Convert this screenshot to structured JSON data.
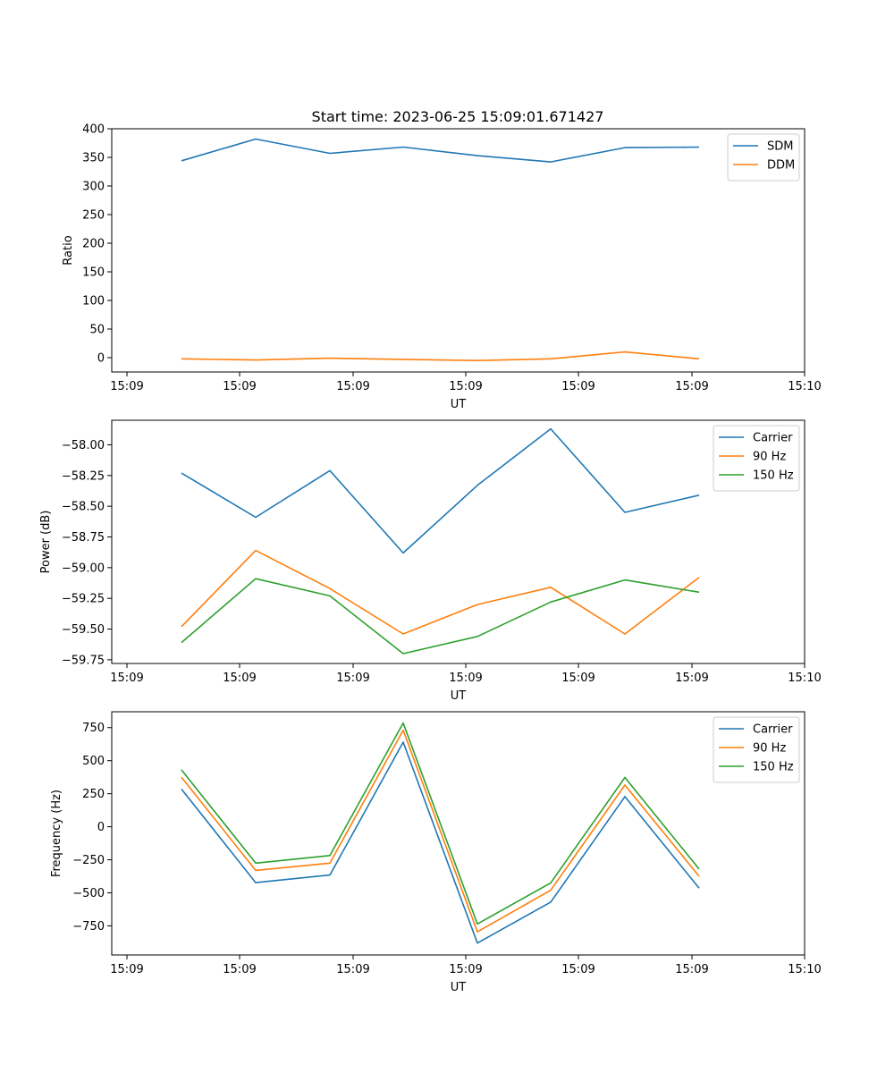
{
  "figure": {
    "title": "Start time: 2023-06-25 15:09:01.671427"
  },
  "colors": {
    "blue": "#1f77b4",
    "orange": "#ff7f0e",
    "green": "#2ca02c"
  },
  "chart_data": [
    {
      "type": "line",
      "title": "Start time: 2023-06-25 15:09:01.671427",
      "xlabel": "UT",
      "ylabel": "Ratio",
      "x_tick_labels": [
        "15:09",
        "15:09",
        "15:09",
        "15:09",
        "15:09",
        "15:09",
        "15:10"
      ],
      "y_ticks": [
        0,
        50,
        100,
        150,
        200,
        250,
        300,
        350,
        400
      ],
      "y_tick_labels": [
        "0",
        "50",
        "100",
        "150",
        "200",
        "250",
        "300",
        "350",
        "400"
      ],
      "ylim": [
        -25,
        400
      ],
      "legend_position": "top-right",
      "grid": false,
      "series": [
        {
          "name": "SDM",
          "color": "blue",
          "values": [
            344,
            382,
            357,
            368,
            353,
            342,
            367,
            368
          ]
        },
        {
          "name": "DDM",
          "color": "orange",
          "values": [
            -2,
            -4,
            -1,
            -3,
            -5,
            -2,
            10,
            -2
          ]
        }
      ]
    },
    {
      "type": "line",
      "xlabel": "UT",
      "ylabel": "Power (dB)",
      "x_tick_labels": [
        "15:09",
        "15:09",
        "15:09",
        "15:09",
        "15:09",
        "15:09",
        "15:10"
      ],
      "y_ticks": [
        -58.0,
        -58.25,
        -58.5,
        -58.75,
        -59.0,
        -59.25,
        -59.5,
        -59.75
      ],
      "y_tick_labels": [
        "−58.00",
        "−58.25",
        "−58.50",
        "−58.75",
        "−59.00",
        "−59.25",
        "−59.50",
        "−59.75"
      ],
      "ylim": [
        -59.78,
        -57.8
      ],
      "legend_position": "top-right",
      "grid": false,
      "series": [
        {
          "name": "Carrier",
          "color": "blue",
          "values": [
            -58.23,
            -58.59,
            -58.21,
            -58.88,
            -58.33,
            -57.87,
            -58.55,
            -58.41
          ]
        },
        {
          "name": "90 Hz",
          "color": "orange",
          "values": [
            -59.48,
            -58.86,
            -59.17,
            -59.54,
            -59.3,
            -59.16,
            -59.54,
            -59.08
          ]
        },
        {
          "name": "150 Hz",
          "color": "green",
          "values": [
            -59.61,
            -59.09,
            -59.23,
            -59.7,
            -59.56,
            -59.28,
            -59.1,
            -59.2
          ]
        }
      ]
    },
    {
      "type": "line",
      "xlabel": "UT",
      "ylabel": "Frequency (Hz)",
      "x_tick_labels": [
        "15:09",
        "15:09",
        "15:09",
        "15:09",
        "15:09",
        "15:09",
        "15:10"
      ],
      "y_ticks": [
        750,
        500,
        250,
        0,
        -250,
        -500,
        -750
      ],
      "y_tick_labels": [
        "750",
        "500",
        "250",
        "0",
        "−250",
        "−500",
        "−750"
      ],
      "ylim": [
        -970,
        870
      ],
      "legend_position": "top-right",
      "grid": false,
      "series": [
        {
          "name": "Carrier",
          "color": "blue",
          "values": [
            285,
            -423,
            -365,
            640,
            -880,
            -570,
            228,
            -465
          ]
        },
        {
          "name": "90 Hz",
          "color": "orange",
          "values": [
            375,
            -330,
            -275,
            730,
            -795,
            -480,
            315,
            -375
          ]
        },
        {
          "name": "150 Hz",
          "color": "green",
          "values": [
            430,
            -275,
            -218,
            785,
            -735,
            -425,
            373,
            -320
          ]
        }
      ]
    }
  ]
}
